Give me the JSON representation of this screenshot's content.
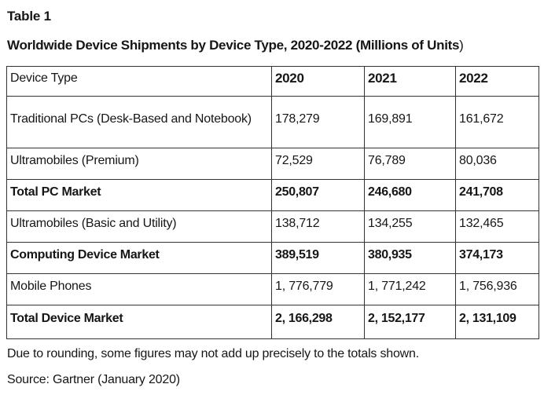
{
  "page": {
    "table_label": "Table 1",
    "title_main": "Worldwide Device Shipments by Device Type, 2020-2022 (Millions of Units",
    "title_paren": ")",
    "note": "Due to rounding, some figures may not add up precisely to the totals shown.",
    "source": "Source: Gartner (January 2020)"
  },
  "table": {
    "columns": [
      "Device Type",
      "2020",
      "2021",
      "2022"
    ],
    "rows": [
      {
        "label": "Traditional PCs (Desk-Based and Notebook)",
        "values": [
          "178,279",
          "169,891",
          "161,672"
        ],
        "bold": false
      },
      {
        "label": "Ultramobiles (Premium)",
        "values": [
          "72,529",
          "76,789",
          "80,036"
        ],
        "bold": false
      },
      {
        "label": "Total PC Market",
        "values": [
          "250,807",
          "246,680",
          "241,708"
        ],
        "bold": true
      },
      {
        "label": "Ultramobiles (Basic and Utility)",
        "values": [
          "138,712",
          "134,255",
          "132,465"
        ],
        "bold": false
      },
      {
        "label": "Computing Device Market",
        "values": [
          "389,519",
          "380,935",
          "374,173"
        ],
        "bold": true
      },
      {
        "label": "Mobile Phones",
        "values": [
          "1, 776,779",
          "1, 771,242",
          "1, 756,936"
        ],
        "bold": false
      },
      {
        "label": "Total Device Market",
        "values": [
          "2, 166,298",
          "2, 152,177",
          "2, 131,109"
        ],
        "bold": true
      }
    ]
  },
  "chart_data": {
    "type": "table",
    "title": "Worldwide Device Shipments by Device Type, 2020-2022 (Millions of Units)",
    "columns": [
      "Device Type",
      "2020",
      "2021",
      "2022"
    ],
    "rows": [
      [
        "Traditional PCs (Desk-Based and Notebook)",
        "178,279",
        "169,891",
        "161,672"
      ],
      [
        "Ultramobiles (Premium)",
        "72,529",
        "76,789",
        "80,036"
      ],
      [
        "Total PC Market",
        "250,807",
        "246,680",
        "241,708"
      ],
      [
        "Ultramobiles (Basic and Utility)",
        "138,712",
        "134,255",
        "132,465"
      ],
      [
        "Computing Device Market",
        "389,519",
        "380,935",
        "374,173"
      ],
      [
        "Mobile Phones",
        "1, 776,779",
        "1, 771,242",
        "1, 756,936"
      ],
      [
        "Total Device Market",
        "2, 166,298",
        "2, 152,177",
        "2, 131,109"
      ]
    ]
  }
}
